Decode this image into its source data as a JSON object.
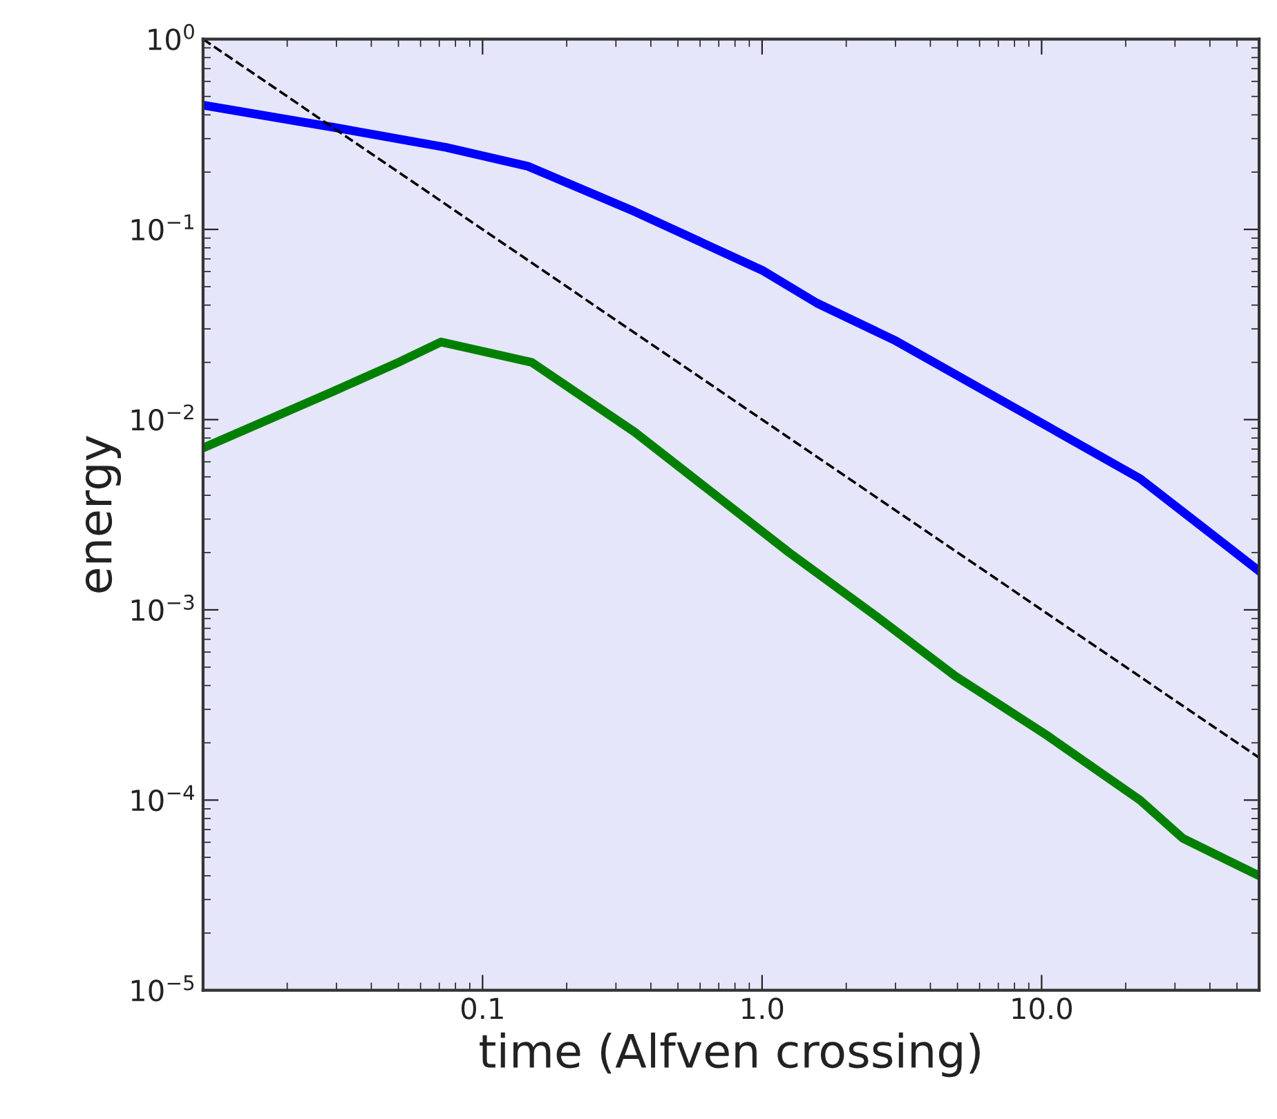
{
  "chart_data": {
    "type": "line",
    "xlabel": "time (Alfven crossing)",
    "ylabel": "energy",
    "log": "xy",
    "xlim": [
      0.01,
      60
    ],
    "xticks": [
      {
        "value": 0.1,
        "label": "0.1"
      },
      {
        "value": 1,
        "label": "1.0"
      },
      {
        "value": 10,
        "label": "10.0"
      }
    ],
    "ylim": [
      1e-05,
      1
    ],
    "yticks": [
      {
        "value": 1,
        "label": "10$^{0}$"
      },
      {
        "value": 0.1,
        "label": "10$^{−1}$"
      },
      {
        "value": 0.01,
        "label": "10$^{−2}$"
      },
      {
        "value": 0.001,
        "label": "10$^{−3}$"
      },
      {
        "value": 0.0001,
        "label": "10$^{−4}$"
      },
      {
        "value": 1e-05,
        "label": "10$^{−5}$"
      }
    ],
    "grid": false,
    "legend": false,
    "series": [
      {
        "color": "#0000ff",
        "line_style": "solid",
        "x": [
          0.01,
          0.029,
          0.074,
          0.145,
          0.35,
          1.0,
          1.57,
          3.0,
          7.2,
          22.5,
          60
        ],
        "values": [
          0.45,
          0.345,
          0.27,
          0.215,
          0.124,
          0.061,
          0.041,
          0.026,
          0.0126,
          0.0049,
          0.0016
        ]
      },
      {
        "color": "#008000",
        "line_style": "solid",
        "x": [
          0.01,
          0.029,
          0.05,
          0.071,
          0.15,
          0.35,
          1.25,
          2.5,
          4.9,
          10.4,
          22.5,
          32,
          60
        ],
        "values": [
          0.0071,
          0.014,
          0.02,
          0.0256,
          0.02,
          0.0086,
          0.002,
          0.00095,
          0.00045,
          0.00022,
          0.0001,
          6.3e-05,
          4e-05
        ]
      },
      {
        "color": "#000000",
        "line_style": "dashed",
        "x": [
          0.01,
          60
        ],
        "values": [
          1,
          0.000167
        ]
      }
    ]
  }
}
